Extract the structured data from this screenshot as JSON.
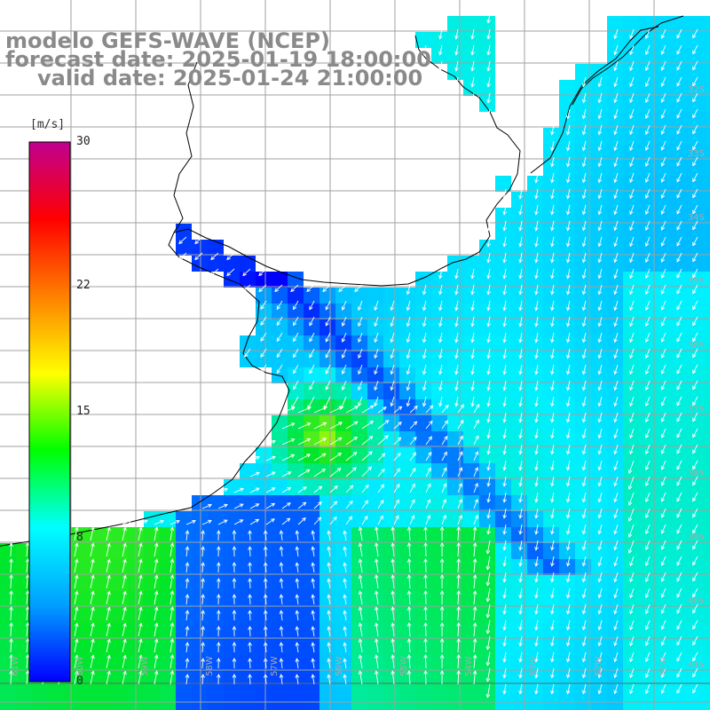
{
  "title": {
    "line1": "modelo GEFS-WAVE (NCEP)",
    "line2": "forecast date: 2025-01-19 18:00:00",
    "line3": "valid date: 2025-01-24 21:00:00"
  },
  "colorbar": {
    "units": "[m/s]",
    "min": 0,
    "max": 30,
    "ticks": [
      "30",
      "22",
      "15",
      "8",
      "0"
    ],
    "tick_values": [
      30,
      22,
      15,
      8,
      0
    ],
    "colors": [
      "#0000ff",
      "#00a0ff",
      "#00ffff",
      "#00ff00",
      "#ffff00",
      "#ff8000",
      "#ff0000",
      "#c00090"
    ]
  },
  "map": {
    "land_color": "#ffffff",
    "grid_color": "#a0a0a0",
    "coast_color": "#000000",
    "arrow_color": "#ffffff",
    "lat_labels": [
      "32S",
      "33S",
      "34S",
      "35S",
      "36S",
      "37S",
      "38S",
      "39S",
      "40S",
      "41S"
    ],
    "lon_labels": [
      "61W",
      "60W",
      "59W",
      "58W",
      "57W",
      "56W",
      "55W",
      "54W",
      "53W",
      "52W",
      "51W"
    ]
  }
}
